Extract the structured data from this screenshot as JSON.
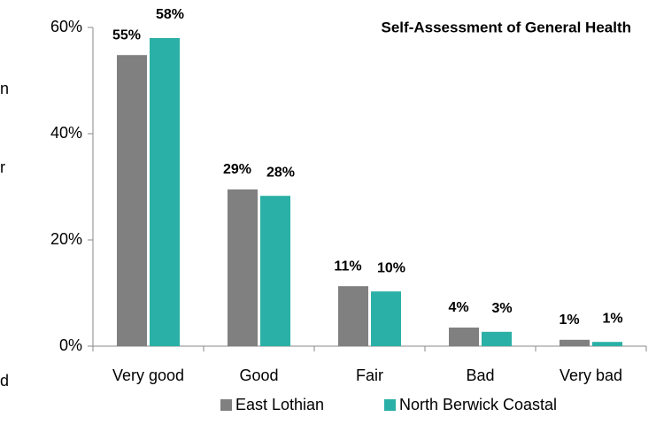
{
  "chart_data": {
    "type": "bar",
    "title": "Self-Assessment of General Health",
    "categories": [
      "Very good",
      "Good",
      "Fair",
      "Bad",
      "Very bad"
    ],
    "series": [
      {
        "name": "East Lothian",
        "color": "#808080",
        "values": [
          54.8,
          29.5,
          11.3,
          3.5,
          1.2
        ],
        "value_labels": [
          "55%",
          "29%",
          "11%",
          "4%",
          "1%"
        ]
      },
      {
        "name": "North Berwick Coastal",
        "color": "#2ab0a6",
        "values": [
          58,
          28.3,
          10.3,
          2.7,
          0.8
        ],
        "value_labels": [
          "58%",
          "28%",
          "10%",
          "3%",
          "1%"
        ]
      }
    ],
    "ylim": [
      0,
      60
    ],
    "yticks": [
      {
        "value": 0,
        "label": "0%"
      },
      {
        "value": 20,
        "label": "20%"
      },
      {
        "value": 40,
        "label": "40%"
      },
      {
        "value": 60,
        "label": "60%"
      }
    ],
    "annotations": [
      "n",
      "r",
      "d"
    ]
  }
}
